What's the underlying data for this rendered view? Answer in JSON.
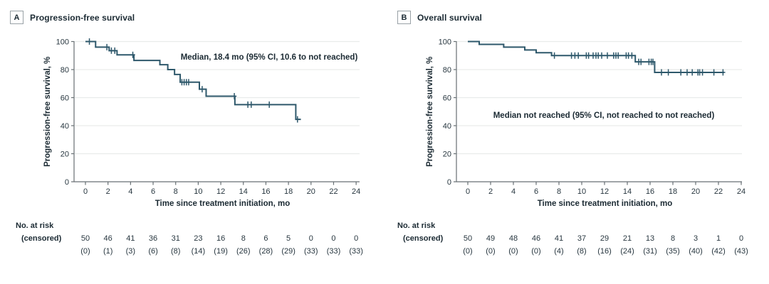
{
  "figure": {
    "background": "#ffffff",
    "curve_color": "#2e586b",
    "grid_color": "#e9eceb",
    "axis_color": "#676f73",
    "text_color": "#27363f",
    "title_color": "#1b2a33"
  },
  "chart_data": [
    {
      "type": "line",
      "subtype": "kaplan-meier-step",
      "panel_label": "A",
      "title": "Progression-free survival",
      "annotation": "Median, 18.4 mo (95% CI, 10.6 to not reached)",
      "xlabel": "Time since treatment initiation, mo",
      "ylabel": "Progression-free survival, %",
      "xlim": [
        0,
        24
      ],
      "ylim": [
        0,
        100
      ],
      "x_ticks": [
        0,
        2,
        4,
        6,
        8,
        10,
        12,
        14,
        16,
        18,
        20,
        22,
        24
      ],
      "y_ticks": [
        0,
        20,
        40,
        60,
        80,
        100
      ],
      "grid": true,
      "steps": [
        [
          0,
          100
        ],
        [
          0.9,
          96
        ],
        [
          2.1,
          93.5
        ],
        [
          2.8,
          90.5
        ],
        [
          4.3,
          86.5
        ],
        [
          6.6,
          83.5
        ],
        [
          7.3,
          80
        ],
        [
          7.9,
          76.5
        ],
        [
          8.4,
          71
        ],
        [
          10.1,
          66
        ],
        [
          10.7,
          61
        ],
        [
          13.25,
          55
        ],
        [
          18.65,
          44.5
        ]
      ],
      "curve_end": 19.1,
      "censor_marks": [
        [
          0.35,
          100
        ],
        [
          1.9,
          96
        ],
        [
          2.3,
          93.5
        ],
        [
          2.6,
          93.5
        ],
        [
          4.2,
          90.5
        ],
        [
          8.55,
          71
        ],
        [
          8.75,
          71
        ],
        [
          8.95,
          71
        ],
        [
          9.15,
          71
        ],
        [
          10.35,
          66
        ],
        [
          13.2,
          61
        ],
        [
          14.4,
          55
        ],
        [
          14.7,
          55
        ],
        [
          16.3,
          55
        ],
        [
          18.8,
          44.5
        ]
      ],
      "risk_table": {
        "label_line1": "No. at risk",
        "label_line2": "(censored)",
        "times": [
          0,
          2,
          4,
          6,
          8,
          10,
          12,
          14,
          16,
          18,
          20,
          22,
          24
        ],
        "at_risk": [
          50,
          46,
          41,
          36,
          31,
          23,
          16,
          8,
          6,
          5,
          0,
          0,
          0
        ],
        "censored": [
          0,
          1,
          3,
          6,
          8,
          14,
          19,
          26,
          28,
          29,
          33,
          33,
          33
        ]
      }
    },
    {
      "type": "line",
      "subtype": "kaplan-meier-step",
      "panel_label": "B",
      "title": "Overall survival",
      "annotation": "Median not reached (95% CI, not reached to not reached)",
      "xlabel": "Time since treatment initiation, mo",
      "ylabel": "Progression-free survival, %",
      "xlim": [
        0,
        24
      ],
      "ylim": [
        0,
        100
      ],
      "x_ticks": [
        0,
        2,
        4,
        6,
        8,
        10,
        12,
        14,
        16,
        18,
        20,
        22,
        24
      ],
      "y_ticks": [
        0,
        20,
        40,
        60,
        80,
        100
      ],
      "grid": true,
      "steps": [
        [
          0,
          100
        ],
        [
          1.0,
          98
        ],
        [
          3.15,
          96
        ],
        [
          5.0,
          94
        ],
        [
          6.0,
          92
        ],
        [
          7.35,
          90
        ],
        [
          14.7,
          85.5
        ],
        [
          16.4,
          78
        ]
      ],
      "curve_end": 22.5,
      "censor_marks": [
        [
          7.6,
          90
        ],
        [
          9.1,
          90
        ],
        [
          9.4,
          90
        ],
        [
          9.7,
          90
        ],
        [
          10.4,
          90
        ],
        [
          10.6,
          90
        ],
        [
          11.0,
          90
        ],
        [
          11.25,
          90
        ],
        [
          11.45,
          90
        ],
        [
          11.75,
          90
        ],
        [
          12.25,
          90
        ],
        [
          12.8,
          90
        ],
        [
          13.0,
          90
        ],
        [
          13.2,
          90
        ],
        [
          13.9,
          90
        ],
        [
          14.1,
          90
        ],
        [
          14.4,
          90
        ],
        [
          15.0,
          85.5
        ],
        [
          15.2,
          85.5
        ],
        [
          15.9,
          85.5
        ],
        [
          16.1,
          85.5
        ],
        [
          16.25,
          85.5
        ],
        [
          17.0,
          78
        ],
        [
          17.6,
          78
        ],
        [
          18.7,
          78
        ],
        [
          19.25,
          78
        ],
        [
          19.7,
          78
        ],
        [
          20.2,
          78
        ],
        [
          20.35,
          78
        ],
        [
          20.6,
          78
        ],
        [
          21.6,
          78
        ],
        [
          22.4,
          78
        ]
      ],
      "risk_table": {
        "label_line1": "No. at risk",
        "label_line2": "(censored)",
        "times": [
          0,
          2,
          4,
          6,
          8,
          10,
          12,
          14,
          16,
          18,
          20,
          22,
          24
        ],
        "at_risk": [
          50,
          49,
          48,
          46,
          41,
          37,
          29,
          21,
          13,
          8,
          3,
          1,
          0
        ],
        "censored": [
          0,
          0,
          0,
          0,
          4,
          8,
          16,
          24,
          31,
          35,
          40,
          42,
          43
        ]
      }
    }
  ]
}
